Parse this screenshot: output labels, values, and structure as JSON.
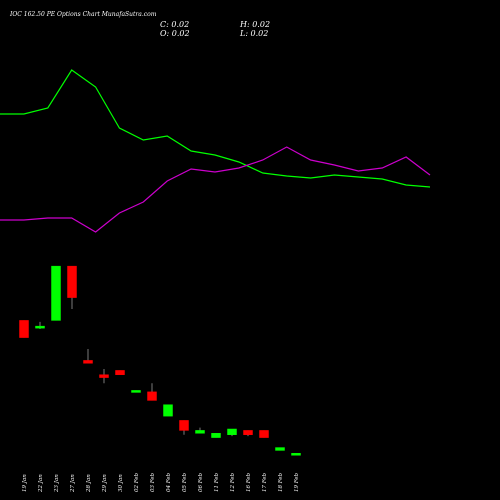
{
  "header": {
    "title": "IOC 162.50 PE Options Chart MunafaSutra.com",
    "close_label": "C: 0.02",
    "open_label": "O: 0.02",
    "high_label": "H: 0.02",
    "low_label": "L: 0.02"
  },
  "colors": {
    "background": "#000000",
    "up": "#00ff00",
    "down": "#ff0000",
    "line_green": "#00ff00",
    "line_purple": "#cc00cc",
    "text": "#ffffff"
  },
  "chart_data": {
    "type": "candlestick",
    "categories": [
      "19 Jan",
      "22 Jan",
      "23 Jan",
      "27 Jan",
      "28 Jan",
      "29 Jan",
      "30 Jan",
      "02 Feb",
      "03 Feb",
      "04 Feb",
      "05 Feb",
      "06 Feb",
      "11 Feb",
      "12 Feb",
      "16 Feb",
      "17 Feb",
      "18 Feb",
      "19 Feb"
    ],
    "candles": [
      {
        "open": 0.62,
        "close": 0.5,
        "high": 0.62,
        "low": 0.5
      },
      {
        "open": 0.57,
        "close": 0.58,
        "high": 0.61,
        "low": 0.56
      },
      {
        "open": 0.62,
        "close": 1.0,
        "high": 1.0,
        "low": 0.62
      },
      {
        "open": 1.0,
        "close": 0.78,
        "high": 1.0,
        "low": 0.7
      },
      {
        "open": 0.34,
        "close": 0.32,
        "high": 0.42,
        "low": 0.32
      },
      {
        "open": 0.24,
        "close": 0.22,
        "high": 0.28,
        "low": 0.18
      },
      {
        "open": 0.27,
        "close": 0.24,
        "high": 0.27,
        "low": 0.24
      },
      {
        "open": 0.12,
        "close": 0.13,
        "high": 0.13,
        "low": 0.12
      },
      {
        "open": 0.12,
        "close": 0.06,
        "high": 0.18,
        "low": 0.06
      },
      {
        "open": -0.05,
        "close": 0.03,
        "high": 0.03,
        "low": -0.05
      },
      {
        "open": -0.08,
        "close": -0.15,
        "high": -0.08,
        "low": -0.18
      },
      {
        "open": -0.17,
        "close": -0.15,
        "high": -0.13,
        "low": -0.17
      },
      {
        "open": -0.2,
        "close": -0.17,
        "high": -0.17,
        "low": -0.2
      },
      {
        "open": -0.18,
        "close": -0.14,
        "high": -0.14,
        "low": -0.19
      },
      {
        "open": -0.15,
        "close": -0.18,
        "high": -0.15,
        "low": -0.19
      },
      {
        "open": -0.15,
        "close": -0.2,
        "high": -0.15,
        "low": -0.2
      },
      {
        "open": -0.29,
        "close": -0.27,
        "high": -0.27,
        "low": -0.29
      },
      {
        "open": -0.32,
        "close": -0.31,
        "high": -0.31,
        "low": -0.32
      }
    ],
    "series": [
      {
        "color": "#00ff00",
        "x": [
          0,
          1.5,
          3,
          4.5,
          6,
          7.5,
          9,
          10.5,
          12,
          13.5,
          15,
          16.5,
          18,
          19.5,
          21,
          22.5,
          24,
          25.5,
          27
        ],
        "values": [
          114,
          114,
          108,
          70,
          87,
          128,
          140,
          136,
          151,
          155,
          162,
          173,
          176,
          178,
          175,
          177,
          179,
          185,
          187
        ]
      },
      {
        "color": "#cc00cc",
        "x": [
          0,
          1.5,
          3,
          4.5,
          6,
          7.5,
          9,
          10.5,
          12,
          13.5,
          15,
          16.5,
          18,
          19.5,
          21,
          22.5,
          24,
          25.5,
          27
        ],
        "values": [
          220,
          220,
          218,
          218,
          232,
          213,
          202,
          181,
          169,
          172,
          168,
          160,
          147,
          160,
          165,
          171,
          168,
          157,
          175
        ]
      }
    ],
    "ylim_candles": [
      -0.35,
      1.05
    ],
    "lines_inverted": true,
    "grid": false,
    "legend": "none"
  }
}
